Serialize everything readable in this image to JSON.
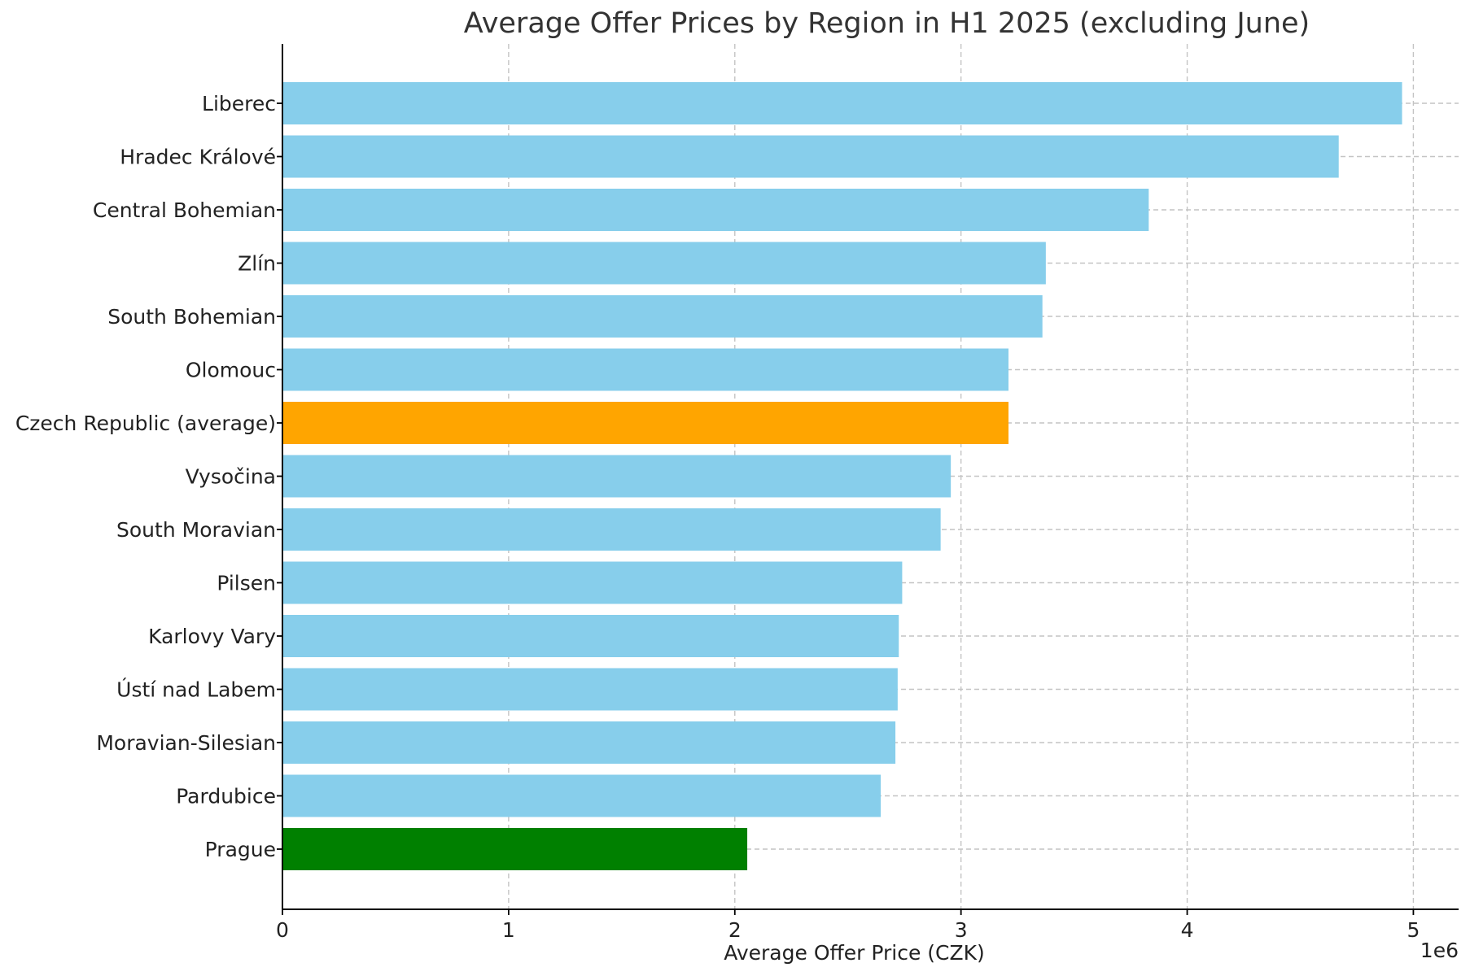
{
  "chart_data": {
    "type": "bar",
    "orientation": "horizontal",
    "title": "Average Offer Prices by Region in H1 2025 (excluding June)",
    "xlabel": "Average Offer Price (CZK)",
    "ylabel": "",
    "x_scale_label": "1e6",
    "xlim": [
      0,
      5200000
    ],
    "x_ticks": [
      0,
      1000000,
      2000000,
      3000000,
      4000000,
      5000000
    ],
    "x_tick_labels": [
      "0",
      "1",
      "2",
      "3",
      "4",
      "5"
    ],
    "grid": true,
    "legend": "none",
    "categories": [
      "Liberec",
      "Hradec Králové",
      "Central Bohemian",
      "Zlín",
      "South Bohemian",
      "Olomouc",
      "Czech Republic (average)",
      "Vysočina",
      "South Moravian",
      "Pilsen",
      "Karlovy Vary",
      "Ústí nad Labem",
      "Moravian-Silesian",
      "Pardubice",
      "Prague"
    ],
    "values": [
      4950000,
      4670000,
      3830000,
      3375000,
      3360000,
      3210000,
      3210000,
      2955000,
      2910000,
      2740000,
      2725000,
      2720000,
      2710000,
      2645000,
      2055000
    ],
    "colors": [
      "#87CEEB",
      "#87CEEB",
      "#87CEEB",
      "#87CEEB",
      "#87CEEB",
      "#87CEEB",
      "#FFA500",
      "#87CEEB",
      "#87CEEB",
      "#87CEEB",
      "#87CEEB",
      "#87CEEB",
      "#87CEEB",
      "#87CEEB",
      "#008000"
    ]
  }
}
